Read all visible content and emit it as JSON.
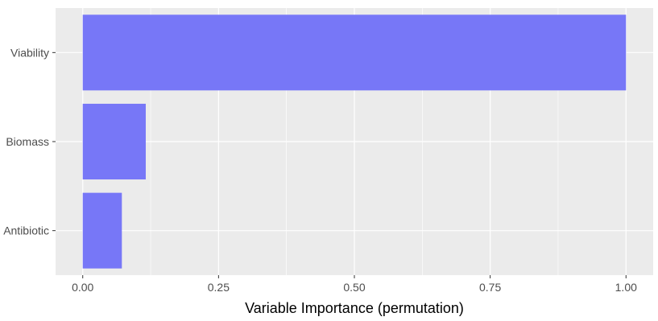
{
  "chart_data": {
    "type": "bar",
    "orientation": "horizontal",
    "title": "",
    "xlabel": "Variable Importance (permutation)",
    "ylabel": "",
    "categories": [
      "Viability",
      "Biomass",
      "Antibiotic"
    ],
    "values": [
      1.0,
      0.116,
      0.072
    ],
    "xlim": [
      -0.05,
      1.05
    ],
    "xticks": [
      0.0,
      0.25,
      0.5,
      0.75,
      1.0
    ],
    "xtick_labels": [
      "0.00",
      "0.25",
      "0.50",
      "0.75",
      "1.00"
    ],
    "grid": true,
    "legend": "none",
    "colors": {
      "bar": "#7777f7",
      "panel": "#ebebeb",
      "grid": "#ffffff",
      "tick": "#333333",
      "tick_label": "#4d4d4d"
    }
  }
}
